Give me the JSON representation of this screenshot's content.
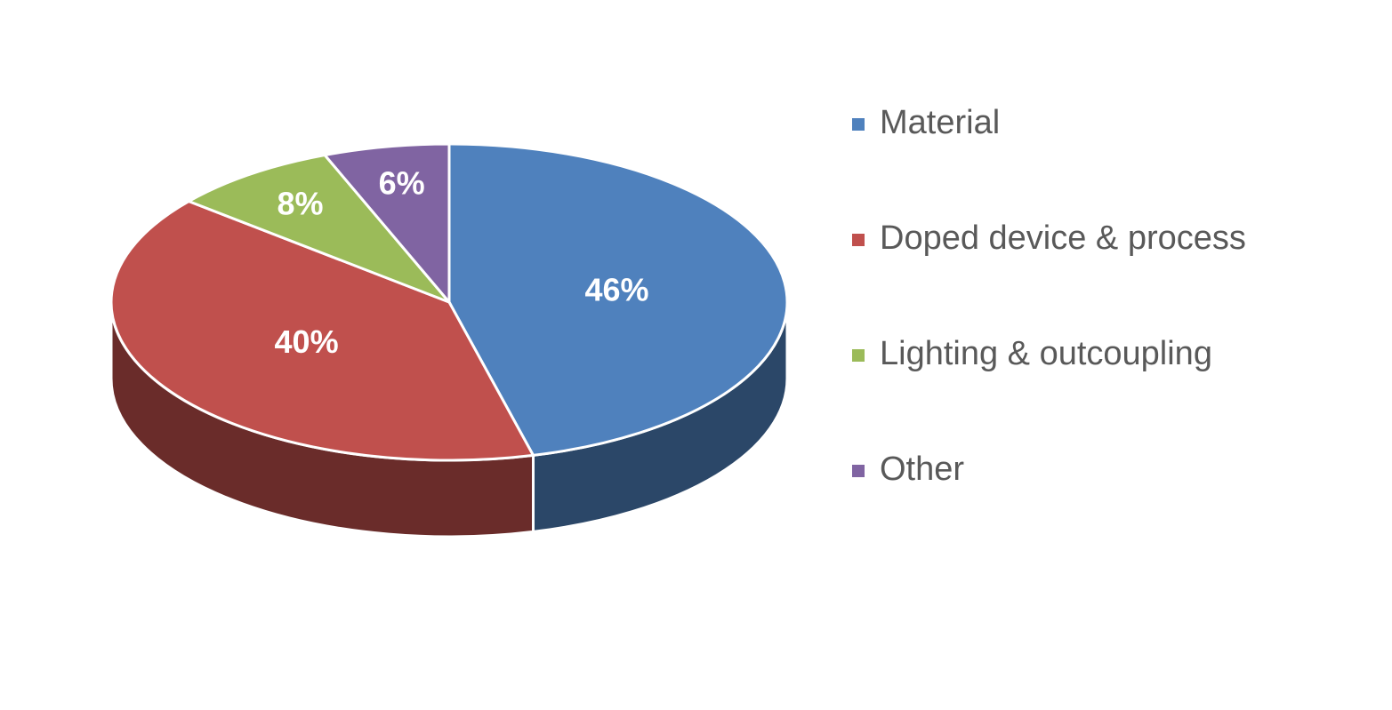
{
  "chart_data": {
    "type": "pie",
    "categories": [
      "Material",
      "Doped device & process",
      "Lighting & outcoupling",
      "Other"
    ],
    "values": [
      46,
      40,
      8,
      6
    ],
    "value_labels": [
      "46%",
      "40%",
      "8%",
      "6%"
    ],
    "colors": [
      "#4f81bd",
      "#c0504d",
      "#9bbb59",
      "#8064a2"
    ],
    "legend": "right"
  }
}
